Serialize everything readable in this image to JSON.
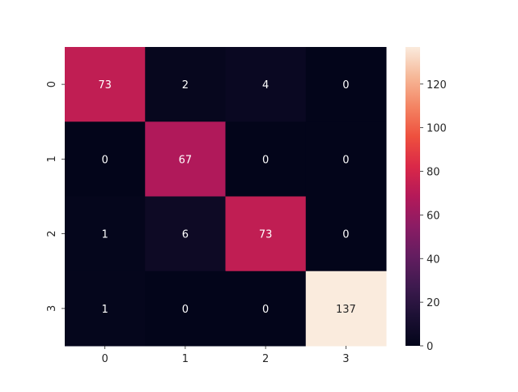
{
  "chart_data": {
    "type": "heatmap",
    "title": "",
    "xlabel": "",
    "ylabel": "",
    "x_categories": [
      "0",
      "1",
      "2",
      "3"
    ],
    "y_categories": [
      "0",
      "1",
      "2",
      "3"
    ],
    "matrix": [
      [
        73,
        2,
        4,
        0
      ],
      [
        0,
        67,
        0,
        0
      ],
      [
        1,
        6,
        73,
        0
      ],
      [
        1,
        0,
        0,
        137
      ]
    ],
    "value_range": [
      0,
      137
    ],
    "colormap": "rocket",
    "annotations": true,
    "colorbar": {
      "ticks": [
        0,
        20,
        40,
        60,
        80,
        100,
        120
      ],
      "placement": "right"
    },
    "grid": false,
    "legend": "none"
  }
}
